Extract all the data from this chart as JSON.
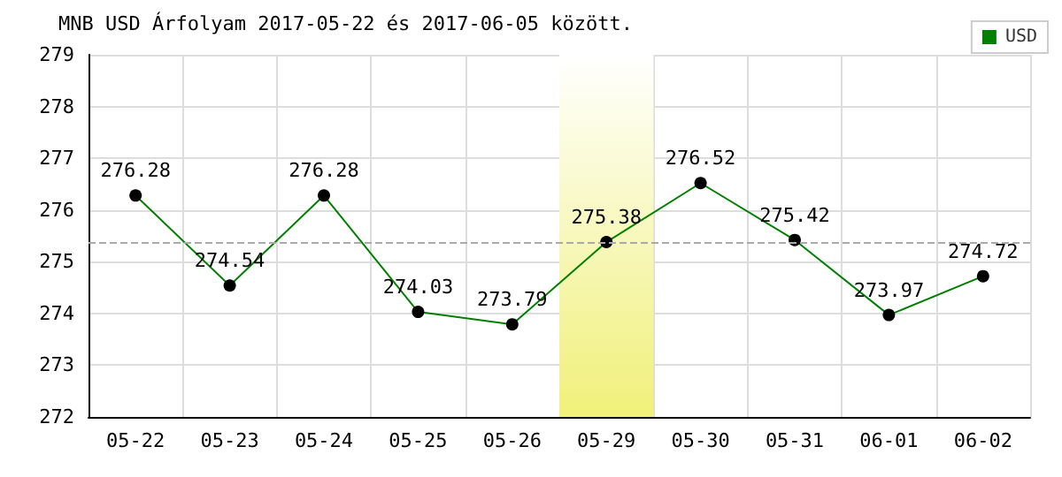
{
  "chart_data": {
    "type": "line",
    "title": "MNB USD Árfolyam 2017-05-22 és 2017-06-05 között.",
    "categories": [
      "05-22",
      "05-23",
      "05-24",
      "05-25",
      "05-26",
      "05-29",
      "05-30",
      "05-31",
      "06-01",
      "06-02"
    ],
    "series": [
      {
        "name": "USD",
        "color": "#008000",
        "values": [
          276.28,
          274.54,
          276.28,
          274.03,
          273.79,
          275.38,
          276.52,
          275.42,
          273.97,
          274.72
        ]
      }
    ],
    "ylim": [
      272,
      279
    ],
    "yticks": [
      272,
      273,
      274,
      275,
      276,
      277,
      278,
      279
    ],
    "grid": true,
    "legend": "top right",
    "marker": "circle",
    "line_style": "solid",
    "data_labels": true,
    "ref_lines": [
      {
        "axis": "y",
        "value": 275.38,
        "color": "#aaaaaa",
        "line_style": "dashed"
      }
    ],
    "bands": [
      {
        "axis": "x",
        "from": "05-29",
        "to": "05-29",
        "color": "#f0f07a"
      }
    ]
  }
}
